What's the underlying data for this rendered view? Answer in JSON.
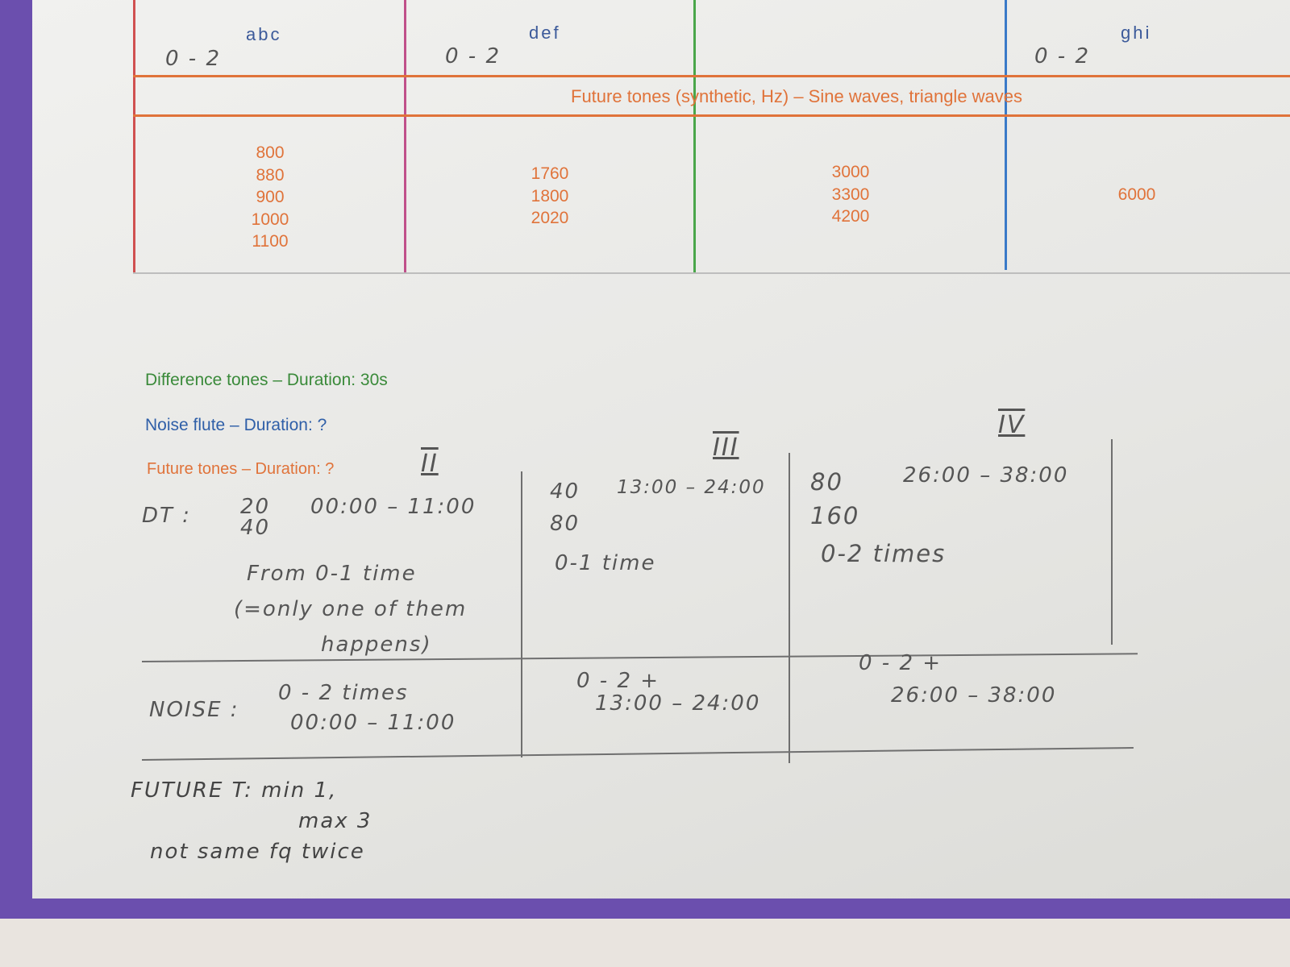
{
  "table": {
    "columns": [
      {
        "header": "abc",
        "range": "0 - 2"
      },
      {
        "header": "def",
        "range": "0 - 2"
      },
      {
        "header": "",
        "range": ""
      },
      {
        "header": "ghi",
        "range": "0 - 2"
      }
    ],
    "band_title": "Future tones (synthetic, Hz) – Sine waves, triangle waves",
    "values": [
      [
        "800",
        "880",
        "900",
        "1000",
        "1100"
      ],
      [
        "1760",
        "1800",
        "2020"
      ],
      [
        "3000",
        "3300",
        "4200"
      ],
      [
        "6000"
      ]
    ],
    "colors": {
      "orange": "#e0733a",
      "magenta": "#c0508a",
      "green": "#4aa64a",
      "blue": "#3a7ac8",
      "red": "#d05050"
    }
  },
  "legend": {
    "difference": "Difference tones – Duration: 30s",
    "noise": "Noise flute – Duration: ?",
    "future": "Future tones – Duration: ?",
    "colors": {
      "difference": "#3a8a3a",
      "noise": "#2f5fa8",
      "future": "#e0733a"
    }
  },
  "handwriting": {
    "sections": [
      "II",
      "III",
      "IV"
    ],
    "dt_label": "DT :",
    "dt": [
      {
        "values": [
          "20",
          "40"
        ],
        "time": "00:00 – 11:00",
        "note": [
          "From 0-1 time",
          "(=only one of them",
          "happens)"
        ]
      },
      {
        "values": [
          "40",
          "80"
        ],
        "time": "13:00 – 24:00",
        "note": [
          "0-1 time"
        ]
      },
      {
        "values": [
          "80",
          "160"
        ],
        "time": "26:00 – 38:00",
        "note": [
          "0-2 times"
        ]
      }
    ],
    "noise_label": "NOISE :",
    "noise": [
      {
        "count": "0 - 2 times",
        "time": "00:00 – 11:00"
      },
      {
        "count": "0 - 2 +",
        "time": "13:00 – 24:00"
      },
      {
        "count": "0 - 2 +",
        "time": "26:00 – 38:00"
      }
    ],
    "footer": [
      "FUTURE T: min 1,",
      "max 3",
      "not same fq twice"
    ]
  }
}
